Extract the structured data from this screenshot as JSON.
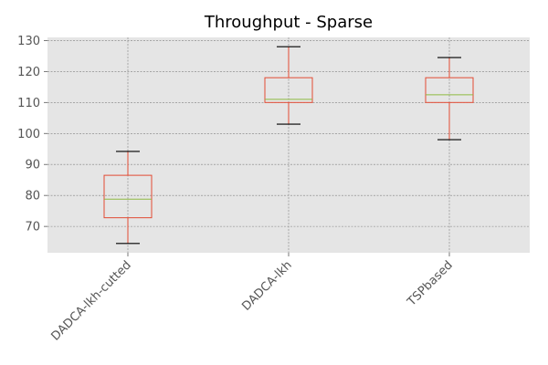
{
  "chart_data": {
    "type": "box",
    "title": "Throughput - Sparse",
    "xlabel": "",
    "ylabel": "",
    "categories": [
      "DADCA-lkh-cutted",
      "DADCA-lkh",
      "TSPbased"
    ],
    "boxes": [
      {
        "name": "DADCA-lkh-cutted",
        "whislo": 64.5,
        "q1": 72.8,
        "med": 78.8,
        "q3": 86.5,
        "whishi": 94.2
      },
      {
        "name": "DADCA-lkh",
        "whislo": 103.0,
        "q1": 110.0,
        "med": 111.0,
        "q3": 118.0,
        "whishi": 128.0
      },
      {
        "name": "TSPbased",
        "whislo": 98.0,
        "q1": 110.0,
        "med": 112.5,
        "q3": 118.0,
        "whishi": 124.5
      }
    ],
    "ylim": [
      61.5,
      131
    ],
    "yticks": [
      70,
      80,
      90,
      100,
      110,
      120,
      130
    ],
    "grid": true,
    "colors": {
      "background": "#E5E5E5",
      "grid": "#7F7F7F",
      "box": "#E24A33",
      "median": "#8EBA42",
      "whisker_cap": "#000000",
      "tick_text": "#555555"
    }
  }
}
